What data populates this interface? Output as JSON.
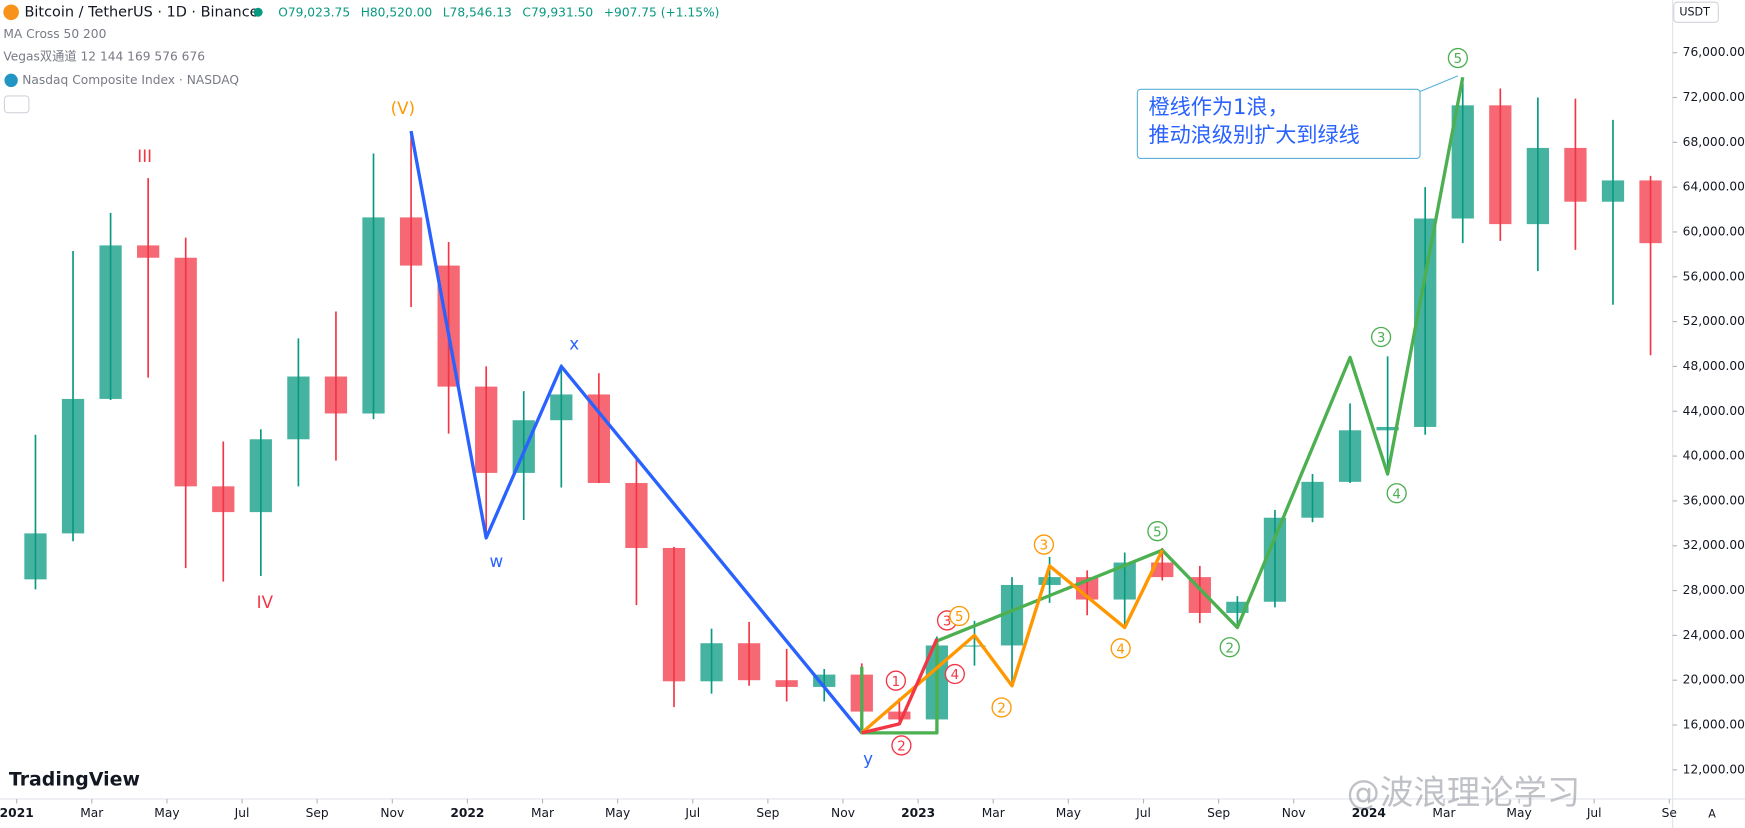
{
  "header": {
    "symbol": "Bitcoin / TetherUS · 1D · Binance",
    "open": "O79,023.75",
    "high": "H80,520.00",
    "low": "L78,546.13",
    "close": "C79,931.50",
    "change": "+907.75 (+1.15%)",
    "indicators": [
      "MA Cross 50 200",
      "Vegas双通道 12 144 169 576 676",
      "Nasdaq Composite Index · NASDAQ"
    ],
    "currency": "USDT",
    "logo": "TradingView",
    "watermark": "@波浪理论学习",
    "axis_mode": "A"
  },
  "chart_data": {
    "type": "candlestick",
    "up_color": "#089981",
    "down_color": "#f23645",
    "grid": false,
    "x": [
      "2021-01",
      "2021-02",
      "2021-03",
      "2021-04",
      "2021-05",
      "2021-06",
      "2021-07",
      "2021-08",
      "2021-09",
      "2021-10",
      "2021-11",
      "2021-12",
      "2022-01",
      "2022-02",
      "2022-03",
      "2022-04",
      "2022-05",
      "2022-06",
      "2022-07",
      "2022-08",
      "2022-09",
      "2022-10",
      "2022-11",
      "2022-12",
      "2023-01",
      "2023-02",
      "2023-03",
      "2023-04",
      "2023-05",
      "2023-06",
      "2023-07",
      "2023-08",
      "2023-09",
      "2023-10",
      "2023-11",
      "2023-12",
      "2024-01",
      "2024-02",
      "2024-03",
      "2024-04",
      "2024-05",
      "2024-06",
      "2024-07",
      "2024-08"
    ],
    "open": [
      29000,
      33100,
      45100,
      58800,
      57700,
      37300,
      35000,
      41500,
      47100,
      43800,
      61300,
      57000,
      46200,
      38500,
      43200,
      45500,
      37600,
      31800,
      19900,
      23300,
      20000,
      19400,
      20500,
      17200,
      16500,
      23100,
      23100,
      28500,
      29200,
      27200,
      30500,
      29200,
      26000,
      27000,
      34500,
      37700,
      42300,
      42600,
      61200,
      71300,
      60700,
      67500,
      62700,
      64600
    ],
    "high": [
      41900,
      58300,
      61700,
      64800,
      59500,
      41300,
      42400,
      50500,
      52900,
      67000,
      69000,
      59100,
      48000,
      45800,
      48200,
      47400,
      40000,
      31900,
      24600,
      25200,
      22800,
      21000,
      21500,
      18400,
      23900,
      25300,
      29200,
      31000,
      29800,
      31400,
      31800,
      30200,
      27500,
      35200,
      38400,
      44700,
      48900,
      64000,
      73800,
      72800,
      72000,
      71900,
      70000,
      65000
    ],
    "low": [
      28100,
      32400,
      45000,
      47000,
      30000,
      28800,
      29300,
      37300,
      39600,
      43300,
      53300,
      42000,
      32900,
      34300,
      37200,
      37600,
      26700,
      17600,
      18800,
      19500,
      18100,
      18100,
      15500,
      16300,
      16500,
      21300,
      19500,
      26900,
      25800,
      24800,
      28900,
      25100,
      24900,
      26500,
      34100,
      37600,
      38500,
      41900,
      59000,
      59200,
      56500,
      58400,
      53500,
      49000
    ],
    "close": [
      33100,
      45100,
      58800,
      57700,
      37300,
      35000,
      41500,
      47100,
      43800,
      61300,
      57000,
      46200,
      38500,
      43200,
      45500,
      37600,
      31800,
      19900,
      23300,
      20000,
      19400,
      20500,
      17200,
      16500,
      23100,
      23100,
      28500,
      29200,
      27200,
      30500,
      29200,
      26000,
      27000,
      34500,
      37700,
      42300,
      42600,
      61200,
      71300,
      60700,
      67500,
      62700,
      64600,
      59000
    ],
    "ylim": [
      9400,
      80700
    ],
    "yticks": [
      {
        "value": 76000,
        "label": "76,000.00"
      },
      {
        "value": 72000,
        "label": "72,000.00"
      },
      {
        "value": 68000,
        "label": "68,000.00"
      },
      {
        "value": 64000,
        "label": "64,000.00"
      },
      {
        "value": 60000,
        "label": "60,000.00"
      },
      {
        "value": 56000,
        "label": "56,000.00"
      },
      {
        "value": 52000,
        "label": "52,000.00"
      },
      {
        "value": 48000,
        "label": "48,000.00"
      },
      {
        "value": 44000,
        "label": "44,000.00"
      },
      {
        "value": 40000,
        "label": "40,000.00"
      },
      {
        "value": 36000,
        "label": "36,000.00"
      },
      {
        "value": 32000,
        "label": "32,000.00"
      },
      {
        "value": 28000,
        "label": "28,000.00"
      },
      {
        "value": 24000,
        "label": "24,000.00"
      },
      {
        "value": 20000,
        "label": "20,000.00"
      },
      {
        "value": 16000,
        "label": "16,000.00"
      },
      {
        "value": 12000,
        "label": "12,000.00"
      }
    ],
    "xticks": [
      {
        "value": "2021-01",
        "label": "2021"
      },
      {
        "value": "2021-03",
        "label": "Mar"
      },
      {
        "value": "2021-05",
        "label": "May"
      },
      {
        "value": "2021-07",
        "label": "Jul"
      },
      {
        "value": "2021-09",
        "label": "Sep"
      },
      {
        "value": "2021-11",
        "label": "Nov"
      },
      {
        "value": "2022-01",
        "label": "2022"
      },
      {
        "value": "2022-03",
        "label": "Mar"
      },
      {
        "value": "2022-05",
        "label": "May"
      },
      {
        "value": "2022-07",
        "label": "Jul"
      },
      {
        "value": "2022-09",
        "label": "Sep"
      },
      {
        "value": "2022-11",
        "label": "Nov"
      },
      {
        "value": "2023-01",
        "label": "2023"
      },
      {
        "value": "2023-03",
        "label": "Mar"
      },
      {
        "value": "2023-05",
        "label": "May"
      },
      {
        "value": "2023-07",
        "label": "Jul"
      },
      {
        "value": "2023-09",
        "label": "Sep"
      },
      {
        "value": "2023-11",
        "label": "Nov"
      },
      {
        "value": "2024-01",
        "label": "2024"
      },
      {
        "value": "2024-03",
        "label": "Mar"
      },
      {
        "value": "2024-05",
        "label": "May"
      },
      {
        "value": "2024-07",
        "label": "Jul"
      },
      {
        "value": "2024-09",
        "label": "Se"
      }
    ],
    "waves": [
      {
        "color": "#2962ff",
        "x": [
          "2021-11",
          "2022-01",
          "2022-03",
          "2022-11"
        ],
        "values": [
          69000,
          32700,
          48000,
          15300
        ]
      },
      {
        "color": "#4caf50",
        "x": [
          "2022-11",
          "2022-11",
          "2023-01",
          "2023-01",
          "2023-07",
          "2023-09",
          "2023-12",
          "2024-01",
          "2024-03"
        ],
        "values": [
          21200,
          15300,
          15300,
          23500,
          31600,
          24700,
          48800,
          38400,
          73800
        ]
      },
      {
        "color": "#ff9800",
        "x": [
          "2022-11",
          "2023-02",
          "2023-03",
          "2023-04",
          "2023-06",
          "2023-07"
        ],
        "values": [
          15300,
          24000,
          19500,
          30200,
          24700,
          31600
        ]
      },
      {
        "color": "#f23645",
        "x": [
          "2022-11",
          "2022-12",
          "2023-01"
        ],
        "values": [
          15300,
          16100,
          23700
        ]
      }
    ],
    "annotations": [
      {
        "text": "III",
        "color": "#f23645",
        "circled": false
      },
      {
        "text": "IV",
        "color": "#f23645",
        "circled": false
      },
      {
        "text": "(V)",
        "color": "#ff9800",
        "circled": false
      },
      {
        "text": "x",
        "color": "#2962ff",
        "circled": false
      },
      {
        "text": "w",
        "color": "#2962ff",
        "circled": false
      },
      {
        "text": "y",
        "color": "#2962ff",
        "circled": false
      },
      {
        "text": "1",
        "color": "#f23645",
        "circled": true
      },
      {
        "text": "2",
        "color": "#f23645",
        "circled": true
      },
      {
        "text": "3",
        "color": "#f23645",
        "circled": true
      },
      {
        "text": "4",
        "color": "#f23645",
        "circled": true
      },
      {
        "text": "5",
        "color": "#ff9800",
        "circled": true
      },
      {
        "text": "2",
        "color": "#ff9800",
        "circled": true
      },
      {
        "text": "3",
        "color": "#ff9800",
        "circled": true
      },
      {
        "text": "4",
        "color": "#ff9800",
        "circled": true
      },
      {
        "text": "5",
        "color": "#4caf50",
        "circled": true
      },
      {
        "text": "2",
        "color": "#4caf50",
        "circled": true
      },
      {
        "text": "3",
        "color": "#4caf50",
        "circled": true
      },
      {
        "text": "4",
        "color": "#4caf50",
        "circled": true
      },
      {
        "text": "5",
        "color": "#4caf50",
        "circled": true
      }
    ],
    "callout": [
      "橙线作为1浪，",
      "推动浪级别扩大到绿线"
    ]
  }
}
